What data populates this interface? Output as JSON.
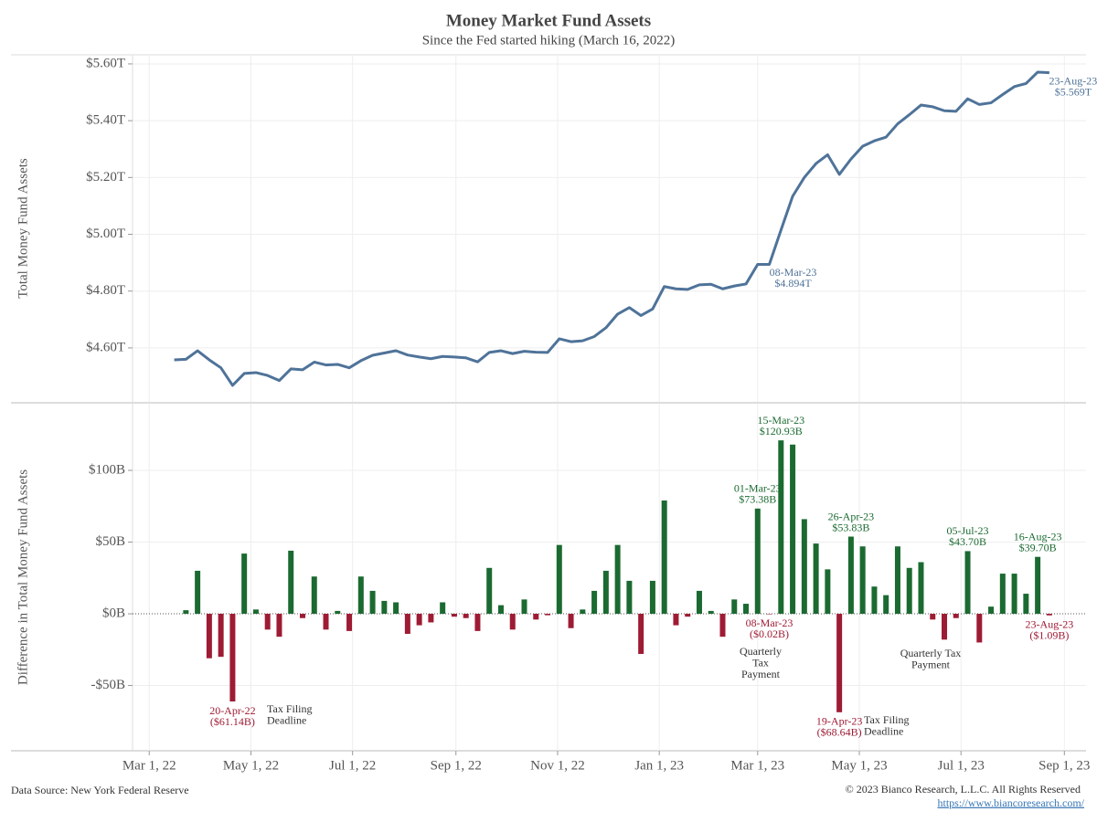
{
  "title": "Money Market Fund Assets",
  "subtitle": "Since the Fed started hiking (March 16, 2022)",
  "footer": {
    "source": "Data Source: New York Federal Reserve",
    "copyright": "© 2023 Bianco Research, L.L.C. All Rights Reserved",
    "url": "https://www.biancoresearch.com/"
  },
  "chart_data": [
    {
      "type": "line",
      "y_label": "Total Money Fund Assets",
      "color": "#4f7399",
      "grid": true,
      "ylim": [
        4.41,
        5.632
      ],
      "yticks": [
        {
          "value": 4.6,
          "label": "$4.60T"
        },
        {
          "value": 4.8,
          "label": "$4.80T"
        },
        {
          "value": 5.0,
          "label": "$5.00T"
        },
        {
          "value": 5.2,
          "label": "$5.20T"
        },
        {
          "value": 5.4,
          "label": "$5.40T"
        },
        {
          "value": 5.6,
          "label": "$5.60T"
        }
      ],
      "x": [
        "2022-03-16",
        "2022-03-23",
        "2022-03-30",
        "2022-04-06",
        "2022-04-13",
        "2022-04-20",
        "2022-04-27",
        "2022-05-04",
        "2022-05-11",
        "2022-05-18",
        "2022-05-25",
        "2022-06-01",
        "2022-06-08",
        "2022-06-15",
        "2022-06-22",
        "2022-06-29",
        "2022-07-06",
        "2022-07-13",
        "2022-07-20",
        "2022-07-27",
        "2022-08-03",
        "2022-08-10",
        "2022-08-17",
        "2022-08-24",
        "2022-08-31",
        "2022-09-07",
        "2022-09-14",
        "2022-09-21",
        "2022-09-28",
        "2022-10-05",
        "2022-10-12",
        "2022-10-19",
        "2022-10-26",
        "2022-11-02",
        "2022-11-09",
        "2022-11-16",
        "2022-11-23",
        "2022-11-30",
        "2022-12-07",
        "2022-12-14",
        "2022-12-21",
        "2022-12-28",
        "2023-01-04",
        "2023-01-11",
        "2023-01-18",
        "2023-01-25",
        "2023-02-01",
        "2023-02-08",
        "2023-02-15",
        "2023-02-22",
        "2023-03-01",
        "2023-03-08",
        "2023-03-15",
        "2023-03-22",
        "2023-03-29",
        "2023-04-05",
        "2023-04-12",
        "2023-04-19",
        "2023-04-26",
        "2023-05-03",
        "2023-05-10",
        "2023-05-17",
        "2023-05-24",
        "2023-05-31",
        "2023-06-07",
        "2023-06-14",
        "2023-06-21",
        "2023-06-28",
        "2023-07-05",
        "2023-07-12",
        "2023-07-19",
        "2023-07-26",
        "2023-08-02",
        "2023-08-09",
        "2023-08-16",
        "2023-08-23"
      ],
      "values": [
        4.558,
        4.56,
        4.59,
        4.558,
        4.53,
        4.468,
        4.51,
        4.513,
        4.503,
        4.485,
        4.526,
        4.523,
        4.55,
        4.54,
        4.542,
        4.53,
        4.555,
        4.574,
        4.582,
        4.59,
        4.575,
        4.568,
        4.562,
        4.57,
        4.568,
        4.565,
        4.551,
        4.584,
        4.59,
        4.58,
        4.588,
        4.585,
        4.584,
        4.632,
        4.622,
        4.625,
        4.64,
        4.671,
        4.719,
        4.742,
        4.714,
        4.737,
        4.816,
        4.808,
        4.806,
        4.822,
        4.824,
        4.808,
        4.818,
        4.825,
        4.894,
        4.894,
        5.015,
        5.134,
        5.2,
        5.249,
        5.28,
        5.211,
        5.265,
        5.31,
        5.329,
        5.342,
        5.389,
        5.421,
        5.455,
        5.449,
        5.435,
        5.433,
        5.477,
        5.457,
        5.463,
        5.492,
        5.52,
        5.531,
        5.571,
        5.569
      ],
      "date_labels": [
        null,
        null,
        null,
        null,
        null,
        null,
        null,
        null,
        null,
        null,
        null,
        null,
        null,
        null,
        null,
        null,
        null,
        null,
        null,
        null,
        null,
        null,
        null,
        null,
        null,
        null,
        null,
        null,
        null,
        null,
        null,
        null,
        null,
        null,
        null,
        null,
        null,
        null,
        null,
        null,
        null,
        null,
        null,
        null,
        null,
        null,
        null,
        null,
        null,
        null,
        null,
        "08-Mar-23",
        null,
        null,
        null,
        null,
        null,
        null,
        null,
        null,
        null,
        null,
        null,
        null,
        null,
        null,
        null,
        null,
        null,
        null,
        null,
        null,
        null,
        null,
        null,
        "23-Aug-23"
      ],
      "value_labels": [
        null,
        null,
        null,
        null,
        null,
        null,
        null,
        null,
        null,
        null,
        null,
        null,
        null,
        null,
        null,
        null,
        null,
        null,
        null,
        null,
        null,
        null,
        null,
        null,
        null,
        null,
        null,
        null,
        null,
        null,
        null,
        null,
        null,
        null,
        null,
        null,
        null,
        null,
        null,
        null,
        null,
        null,
        null,
        null,
        null,
        null,
        null,
        null,
        null,
        null,
        null,
        "$4.894T",
        null,
        null,
        null,
        null,
        null,
        null,
        null,
        null,
        null,
        null,
        null,
        null,
        null,
        null,
        null,
        null,
        null,
        null,
        null,
        null,
        null,
        null,
        null,
        "$5.569T"
      ]
    },
    {
      "type": "bar",
      "y_label": "Difference in Total Money Fund Assets",
      "grid": true,
      "colors": {
        "positive": "#1b6a31",
        "negative": "#9e1b34"
      },
      "xlim": [
        "2022-02-19",
        "2023-09-14"
      ],
      "xticks": [
        {
          "value": "2022-03-01",
          "label": "Mar 1, 22"
        },
        {
          "value": "2022-05-01",
          "label": "May 1, 22"
        },
        {
          "value": "2022-07-01",
          "label": "Jul 1, 22"
        },
        {
          "value": "2022-09-01",
          "label": "Sep 1, 22"
        },
        {
          "value": "2022-11-01",
          "label": "Nov 1, 22"
        },
        {
          "value": "2023-01-01",
          "label": "Jan 1, 23"
        },
        {
          "value": "2023-03-01",
          "label": "Mar 1, 23"
        },
        {
          "value": "2023-05-01",
          "label": "May 1, 23"
        },
        {
          "value": "2023-07-01",
          "label": "Jul 1, 23"
        },
        {
          "value": "2023-09-01",
          "label": "Sep 1, 23"
        }
      ],
      "ylim": [
        -95.5,
        146.5
      ],
      "yticks": [
        {
          "value": -50,
          "label": "-$50B"
        },
        {
          "value": 0,
          "label": "$0B"
        },
        {
          "value": 50,
          "label": "$50B"
        },
        {
          "value": 100,
          "label": "$100B"
        }
      ],
      "x": [
        "2022-03-23",
        "2022-03-30",
        "2022-04-06",
        "2022-04-13",
        "2022-04-20",
        "2022-04-27",
        "2022-05-04",
        "2022-05-11",
        "2022-05-18",
        "2022-05-25",
        "2022-06-01",
        "2022-06-08",
        "2022-06-15",
        "2022-06-22",
        "2022-06-29",
        "2022-07-06",
        "2022-07-13",
        "2022-07-20",
        "2022-07-27",
        "2022-08-03",
        "2022-08-10",
        "2022-08-17",
        "2022-08-24",
        "2022-08-31",
        "2022-09-07",
        "2022-09-14",
        "2022-09-21",
        "2022-09-28",
        "2022-10-05",
        "2022-10-12",
        "2022-10-19",
        "2022-10-26",
        "2022-11-02",
        "2022-11-09",
        "2022-11-16",
        "2022-11-23",
        "2022-11-30",
        "2022-12-07",
        "2022-12-14",
        "2022-12-21",
        "2022-12-28",
        "2023-01-04",
        "2023-01-11",
        "2023-01-18",
        "2023-01-25",
        "2023-02-01",
        "2023-02-08",
        "2023-02-15",
        "2023-02-22",
        "2023-03-01",
        "2023-03-08",
        "2023-03-15",
        "2023-03-22",
        "2023-03-29",
        "2023-04-05",
        "2023-04-12",
        "2023-04-19",
        "2023-04-26",
        "2023-05-03",
        "2023-05-10",
        "2023-05-17",
        "2023-05-24",
        "2023-05-31",
        "2023-06-07",
        "2023-06-14",
        "2023-06-21",
        "2023-06-28",
        "2023-07-05",
        "2023-07-12",
        "2023-07-19",
        "2023-07-26",
        "2023-08-02",
        "2023-08-09",
        "2023-08-16",
        "2023-08-23"
      ],
      "values": [
        2.5,
        30,
        -31,
        -30,
        -61.14,
        42,
        3,
        -11,
        -16,
        44,
        -3,
        26,
        -11,
        2,
        -12,
        26,
        16,
        9,
        8,
        -14,
        -8,
        -6,
        8,
        -2,
        -3,
        -12,
        32,
        6,
        -11,
        10,
        -4,
        -1,
        48,
        -10,
        3,
        16,
        30,
        48,
        23,
        -28,
        23,
        79,
        -8,
        -2,
        16,
        2,
        -16,
        10,
        7,
        73.38,
        -0.02,
        120.93,
        118,
        66,
        49,
        31,
        -68.64,
        53.83,
        47,
        19,
        13,
        47,
        32,
        36,
        -4,
        -18,
        -3,
        43.7,
        -20,
        5,
        28,
        28,
        14,
        39.7,
        -1.09
      ],
      "date_labels": [
        null,
        null,
        null,
        null,
        "20-Apr-22",
        null,
        null,
        null,
        null,
        null,
        null,
        null,
        null,
        null,
        null,
        null,
        null,
        null,
        null,
        null,
        null,
        null,
        null,
        null,
        null,
        null,
        null,
        null,
        null,
        null,
        null,
        null,
        null,
        null,
        null,
        null,
        null,
        null,
        null,
        null,
        null,
        null,
        null,
        null,
        null,
        null,
        null,
        null,
        null,
        "01-Mar-23",
        "08-Mar-23",
        "15-Mar-23",
        null,
        null,
        null,
        null,
        "19-Apr-23",
        "26-Apr-23",
        null,
        null,
        null,
        null,
        null,
        null,
        null,
        null,
        null,
        "05-Jul-23",
        null,
        null,
        null,
        null,
        null,
        "16-Aug-23",
        "23-Aug-23"
      ],
      "value_labels": [
        null,
        null,
        null,
        null,
        "($61.14B)",
        null,
        null,
        null,
        null,
        null,
        null,
        null,
        null,
        null,
        null,
        null,
        null,
        null,
        null,
        null,
        null,
        null,
        null,
        null,
        null,
        null,
        null,
        null,
        null,
        null,
        null,
        null,
        null,
        null,
        null,
        null,
        null,
        null,
        null,
        null,
        null,
        null,
        null,
        null,
        null,
        null,
        null,
        null,
        null,
        "$73.38B",
        "($0.02B)",
        "$120.93B",
        null,
        null,
        null,
        null,
        "($68.64B)",
        "$53.83B",
        null,
        null,
        null,
        null,
        null,
        null,
        null,
        null,
        null,
        "$43.70B",
        null,
        null,
        null,
        null,
        null,
        "$39.70B",
        "($1.09B)"
      ],
      "annotations": [
        {
          "lines": [
            "Tax Filing",
            "Deadline"
          ]
        },
        {
          "lines": [
            "Quarterly",
            "Tax",
            "Payment"
          ]
        },
        {
          "lines": [
            "Tax Filing",
            "Deadline"
          ]
        },
        {
          "lines": [
            "Quarterly Tax",
            "Payment"
          ]
        }
      ]
    }
  ]
}
